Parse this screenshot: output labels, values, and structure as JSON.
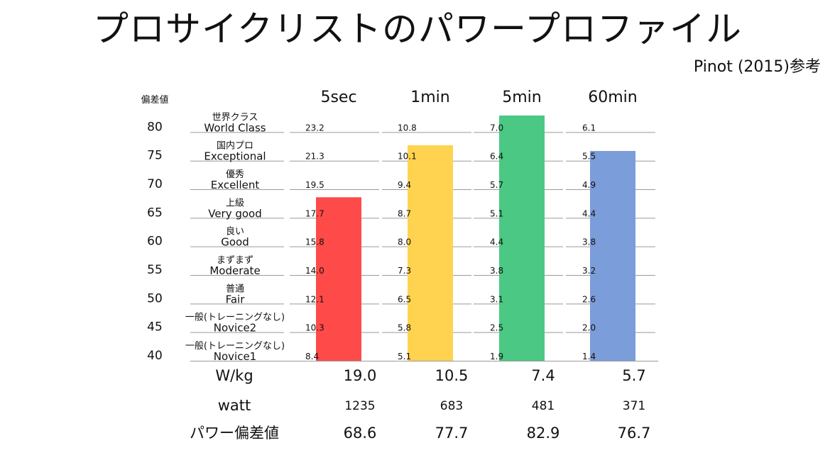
{
  "title": "プロサイクリストのパワープロファイル",
  "reference": "Pinot (2015)参考",
  "colors": {
    "5sec": "#ff4a4a",
    "1min": "#ffd34f",
    "5min": "#4bc883",
    "60min": "#7b9dd9",
    "grid": "#9a9a9a"
  },
  "chart_data": {
    "type": "bar",
    "yaxis_label": "偏差値",
    "yticks": [
      40,
      45,
      50,
      55,
      60,
      65,
      70,
      75,
      80
    ],
    "ylim": [
      40,
      82.9
    ],
    "categories": [
      "5sec",
      "1min",
      "5min",
      "60min"
    ],
    "values": [
      68.6,
      77.7,
      82.9,
      76.7
    ],
    "levels": [
      {
        "score": 80,
        "jp": "世界クラス",
        "en": "World Class",
        "wkg": [
          "23.2",
          "10.8",
          "7.0",
          "6.1"
        ]
      },
      {
        "score": 75,
        "jp": "国内プロ",
        "en": "Exceptional",
        "wkg": [
          "21.3",
          "10.1",
          "6.4",
          "5.5"
        ]
      },
      {
        "score": 70,
        "jp": "優秀",
        "en": "Excellent",
        "wkg": [
          "19.5",
          "9.4",
          "5.7",
          "4.9"
        ]
      },
      {
        "score": 65,
        "jp": "上級",
        "en": "Very good",
        "wkg": [
          "17.7",
          "8.7",
          "5.1",
          "4.4"
        ]
      },
      {
        "score": 60,
        "jp": "良い",
        "en": "Good",
        "wkg": [
          "15.8",
          "8.0",
          "4.4",
          "3.8"
        ]
      },
      {
        "score": 55,
        "jp": "まずまず",
        "en": "Moderate",
        "wkg": [
          "14.0",
          "7.3",
          "3.8",
          "3.2"
        ]
      },
      {
        "score": 50,
        "jp": "普通",
        "en": "Fair",
        "wkg": [
          "12.1",
          "6.5",
          "3.1",
          "2.6"
        ]
      },
      {
        "score": 45,
        "jp": "一般(トレーニングなし)",
        "en": "Novice2",
        "wkg": [
          "10.3",
          "5.8",
          "2.5",
          "2.0"
        ]
      },
      {
        "score": 40,
        "jp": "一般(トレーニングなし)",
        "en": "Novice1",
        "wkg": [
          "8.4",
          "5.1",
          "1.9",
          "1.4"
        ]
      }
    ],
    "summary": [
      {
        "label": "W/kg",
        "values": [
          "19.0",
          "10.5",
          "7.4",
          "5.7"
        ]
      },
      {
        "label": "watt",
        "values": [
          "1235",
          "683",
          "481",
          "371"
        ]
      },
      {
        "label": "パワー偏差値",
        "values": [
          "68.6",
          "77.7",
          "82.9",
          "76.7"
        ]
      }
    ]
  }
}
